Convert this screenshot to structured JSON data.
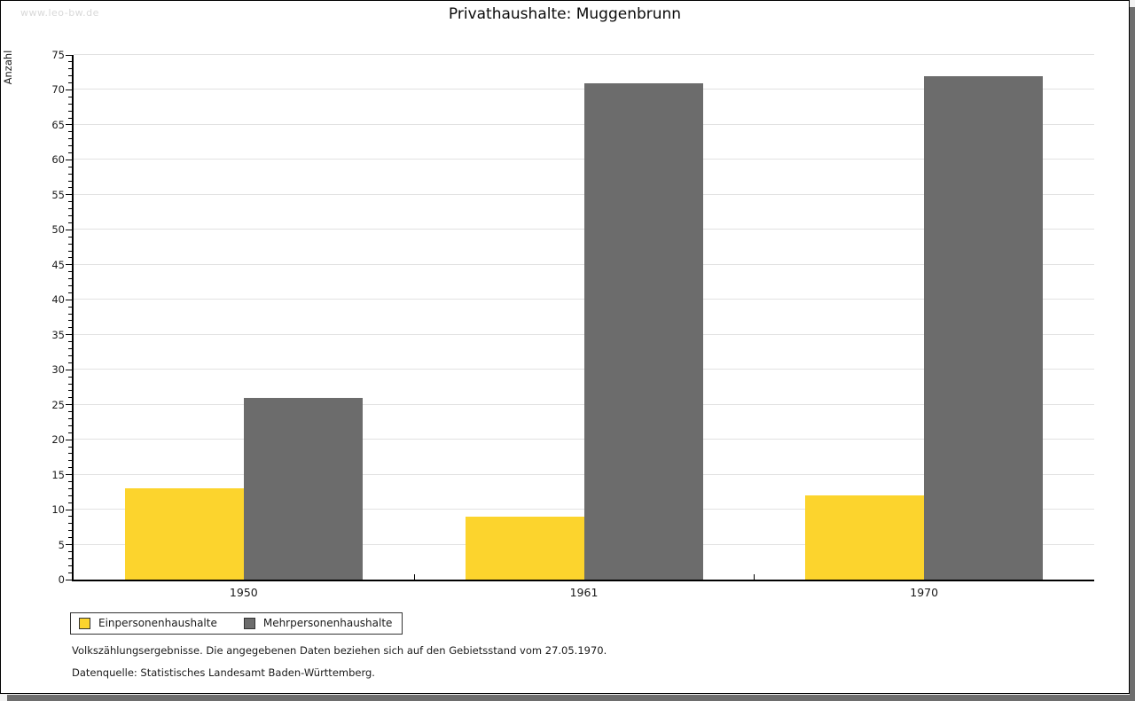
{
  "page": {
    "watermark": "www.leo-bw.de"
  },
  "chart_data": {
    "type": "bar",
    "title": "Privathaushalte: Muggenbrunn",
    "categories": [
      "1950",
      "1961",
      "1970"
    ],
    "series": [
      {
        "name": "Einpersonenhaushalte",
        "color": "#fcd42d",
        "values": [
          13,
          9,
          12
        ]
      },
      {
        "name": "Mehrpersonenhaushalte",
        "color": "#6c6c6c",
        "values": [
          26,
          71,
          72
        ]
      }
    ],
    "xlabel": "",
    "ylabel": "Anzahl",
    "ylim": [
      0,
      75
    ],
    "ytick_major_step": 5,
    "ytick_minor_step": 1,
    "grid": true,
    "gridline_color": "#e2e2e2",
    "legend_position": "bottom-left"
  },
  "footnotes": [
    "Volkszählungsergebnisse. Die angegebenen Daten beziehen sich auf den Gebietsstand vom 27.05.1970.",
    "Datenquelle: Statistisches Landesamt Baden-Württemberg."
  ]
}
